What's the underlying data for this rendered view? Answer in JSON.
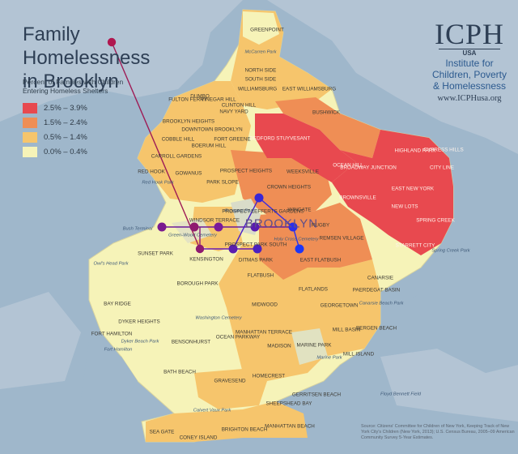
{
  "title": [
    "Family Homelessness",
    "in Brooklyn"
  ],
  "legend": {
    "title": [
      "Percent of Families with Children",
      "Entering Homeless Shelters"
    ],
    "items": [
      {
        "label": "2.5% – 3.9%",
        "color": "#e8494f"
      },
      {
        "label": "1.5% – 2.4%",
        "color": "#ef8e55"
      },
      {
        "label": "0.5% – 1.4%",
        "color": "#f6c56c"
      },
      {
        "label": "0.0% – 0.4%",
        "color": "#f6f3b8"
      }
    ]
  },
  "logo": {
    "name": "ICPH",
    "country": "USA",
    "lines": [
      "Institute for",
      "Children, Poverty",
      "& Homelessness"
    ],
    "url": "www.ICPHusa.org"
  },
  "borough_label": "BROOKLYN",
  "neighborhoods": [
    {
      "name": "GREENPOINT",
      "class": "0.0-0.4"
    },
    {
      "name": "NORTH SIDE",
      "class": "0.5-1.4"
    },
    {
      "name": "SOUTH SIDE",
      "class": "0.5-1.4"
    },
    {
      "name": "WILLIAMSBURG",
      "class": "0.5-1.4"
    },
    {
      "name": "EAST WILLIAMSBURG",
      "class": "0.5-1.4"
    },
    {
      "name": "FULTON FERRY",
      "class": "0.5-1.4"
    },
    {
      "name": "DUMBO",
      "class": "0.5-1.4"
    },
    {
      "name": "VINEGAR HILL",
      "class": "0.5-1.4"
    },
    {
      "name": "NAVY YARD",
      "class": "0.5-1.4"
    },
    {
      "name": "BROOKLYN HEIGHTS",
      "class": "0.5-1.4"
    },
    {
      "name": "CLINTON HILL",
      "class": "0.5-1.4"
    },
    {
      "name": "DOWNTOWN BROOKLYN",
      "class": "0.5-1.4"
    },
    {
      "name": "FORT GREENE",
      "class": "0.5-1.4"
    },
    {
      "name": "COBBLE HILL",
      "class": "0.5-1.4"
    },
    {
      "name": "BOERUM HILL",
      "class": "0.5-1.4"
    },
    {
      "name": "CARROLL GARDENS",
      "class": "0.5-1.4"
    },
    {
      "name": "RED HOOK",
      "class": "0.5-1.4"
    },
    {
      "name": "GOWANUS",
      "class": "0.5-1.4"
    },
    {
      "name": "PARK SLOPE",
      "class": "0.5-1.4"
    },
    {
      "name": "PROSPECT HEIGHTS",
      "class": "1.5-2.4"
    },
    {
      "name": "BUSHWICK",
      "class": "1.5-2.4"
    },
    {
      "name": "BEDFORD STUYVESANT",
      "class": "2.5-3.9"
    },
    {
      "name": "WEEKSVILLE",
      "class": "1.5-2.4"
    },
    {
      "name": "CROWN HEIGHTS",
      "class": "1.5-2.4"
    },
    {
      "name": "OCEAN HILL",
      "class": "1.5-2.4"
    },
    {
      "name": "BROADWAY JUNCTION",
      "class": "2.5-3.9"
    },
    {
      "name": "HIGHLAND PARK",
      "class": "2.5-3.9"
    },
    {
      "name": "CYPRESS HILLS",
      "class": "2.5-3.9"
    },
    {
      "name": "CITY LINE",
      "class": "2.5-3.9"
    },
    {
      "name": "BROWNSVILLE",
      "class": "2.5-3.9"
    },
    {
      "name": "EAST NEW YORK",
      "class": "2.5-3.9"
    },
    {
      "name": "NEW LOTS",
      "class": "2.5-3.9"
    },
    {
      "name": "SPRING CREEK",
      "class": "2.5-3.9"
    },
    {
      "name": "STARRETT CITY",
      "class": "2.5-3.9"
    },
    {
      "name": "PROSPECT LEFFERTS GARDENS",
      "class": "1.5-2.4"
    },
    {
      "name": "WINGATE",
      "class": "1.5-2.4"
    },
    {
      "name": "RUGBY",
      "class": "1.5-2.4"
    },
    {
      "name": "REMSEN VILLAGE",
      "class": "1.5-2.4"
    },
    {
      "name": "EAST FLATBUSH",
      "class": "1.5-2.4"
    },
    {
      "name": "WINDSOR TERRACE",
      "class": "0.5-1.4"
    },
    {
      "name": "KENSINGTON",
      "class": "0.0-0.4"
    },
    {
      "name": "PROSPECT PARK SOUTH",
      "class": "0.5-1.4"
    },
    {
      "name": "DITMAS PARK",
      "class": "0.5-1.4"
    },
    {
      "name": "FLATBUSH",
      "class": "0.5-1.4"
    },
    {
      "name": "FLATLANDS",
      "class": "0.5-1.4"
    },
    {
      "name": "CANARSIE",
      "class": "0.5-1.4"
    },
    {
      "name": "PAERDEGAT BASIN",
      "class": "0.5-1.4"
    },
    {
      "name": "GEORGETOWN",
      "class": "0.5-1.4"
    },
    {
      "name": "MILL BASIN",
      "class": "0.5-1.4"
    },
    {
      "name": "BERGEN BEACH",
      "class": "0.5-1.4"
    },
    {
      "name": "MILL ISLAND",
      "class": "0.5-1.4"
    },
    {
      "name": "MARINE PARK",
      "class": "0.5-1.4"
    },
    {
      "name": "MIDWOOD",
      "class": "0.5-1.4"
    },
    {
      "name": "SUNSET PARK",
      "class": "0.0-0.4"
    },
    {
      "name": "BOROUGH PARK",
      "class": "0.0-0.4"
    },
    {
      "name": "BAY RIDGE",
      "class": "0.0-0.4"
    },
    {
      "name": "DYKER HEIGHTS",
      "class": "0.0-0.4"
    },
    {
      "name": "FORT HAMILTON",
      "class": "0.0-0.4"
    },
    {
      "name": "BENSONHURST",
      "class": "0.0-0.4"
    },
    {
      "name": "OCEAN PARKWAY",
      "class": "0.0-0.4"
    },
    {
      "name": "MANHATTAN TERRACE",
      "class": "0.5-1.4"
    },
    {
      "name": "MADISON",
      "class": "0.0-0.4"
    },
    {
      "name": "BATH BEACH",
      "class": "0.0-0.4"
    },
    {
      "name": "GRAVESEND",
      "class": "0.5-1.4"
    },
    {
      "name": "HOMECREST",
      "class": "0.0-0.4"
    },
    {
      "name": "SHEEPSHEAD BAY",
      "class": "0.0-0.4"
    },
    {
      "name": "GERRITSEN BEACH",
      "class": "0.0-0.4"
    },
    {
      "name": "BRIGHTON BEACH",
      "class": "0.5-1.4"
    },
    {
      "name": "MANHATTAN BEACH",
      "class": "0.5-1.4"
    },
    {
      "name": "SEA GATE",
      "class": "0.5-1.4"
    },
    {
      "name": "CONEY ISLAND",
      "class": "0.5-1.4"
    }
  ],
  "places": [
    "McCarren Park",
    "Red Hook Park",
    "Prospect Park",
    "Bush Terminal",
    "Owl's Head Park",
    "Green-Wood Cemetery",
    "Holy Cross Cemetery",
    "Washington Cemetery",
    "Dyker Beach Park",
    "Fort Hamilton",
    "Marine Park",
    "Canarsie Beach Park",
    "Spring Creek Park",
    "Floyd Bennett Field",
    "Calvert Vaux Park"
  ],
  "source": "Source: Citizens' Committee for Children of New York, Keeping Track of New York City's Children (New York, 2013); U.S. Census Bureau, 2005–09 American Community Survey 5-Year Estimates."
}
